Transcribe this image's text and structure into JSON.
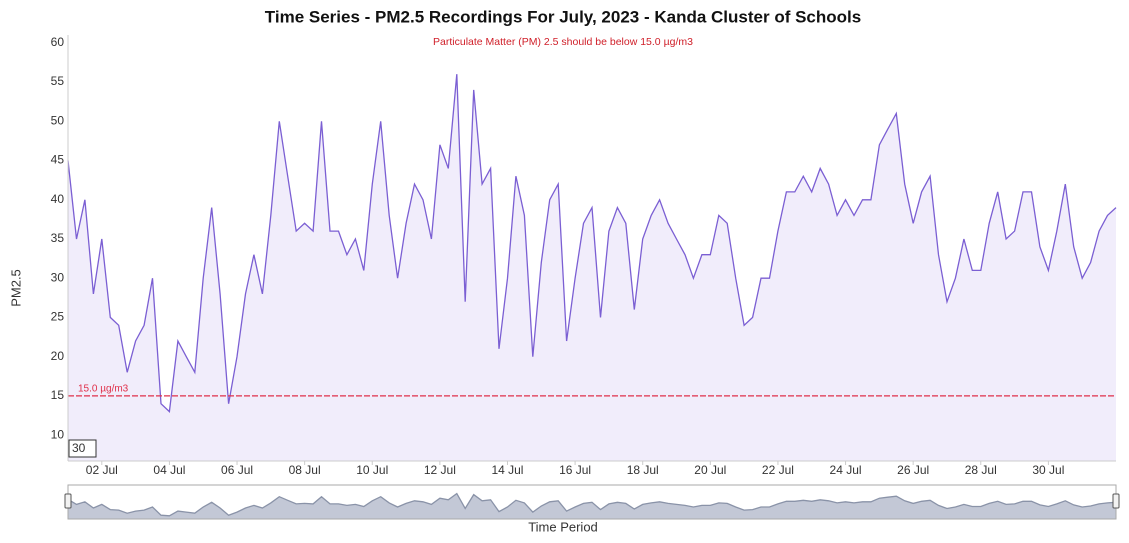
{
  "chart_data": {
    "type": "area",
    "title": "Time Series - PM2.5 Recordings For July, 2023 - Kanda Cluster of Schools",
    "subtitle": "Particulate Matter (PM) 2.5 should be below 15.0 µg/m3",
    "x_label": "Time Period",
    "y_label": "PM2.5",
    "range_input": "30",
    "threshold": {
      "value": 15,
      "label": "15.0 µg/m3",
      "color": "#e0304a"
    },
    "x": [
      1,
      1.25,
      1.5,
      1.75,
      2,
      2.25,
      2.5,
      2.75,
      3,
      3.25,
      3.5,
      3.75,
      4,
      4.25,
      4.5,
      4.75,
      5,
      5.25,
      5.5,
      5.75,
      6,
      6.25,
      6.5,
      6.75,
      7,
      7.25,
      7.5,
      7.75,
      8,
      8.25,
      8.5,
      8.75,
      9,
      9.25,
      9.5,
      9.75,
      10,
      10.25,
      10.5,
      10.75,
      11,
      11.25,
      11.5,
      11.75,
      12,
      12.25,
      12.5,
      12.75,
      13,
      13.25,
      13.5,
      13.75,
      14,
      14.25,
      14.5,
      14.75,
      15,
      15.25,
      15.5,
      15.75,
      16,
      16.25,
      16.5,
      16.75,
      17,
      17.25,
      17.5,
      17.75,
      18,
      18.25,
      18.5,
      18.75,
      19,
      19.25,
      19.5,
      19.75,
      20,
      20.25,
      20.5,
      20.75,
      21,
      21.25,
      21.5,
      21.75,
      22,
      22.25,
      22.5,
      22.75,
      23,
      23.25,
      23.5,
      23.75,
      24,
      24.25,
      24.5,
      24.75,
      25,
      25.25,
      25.5,
      25.75,
      26,
      26.25,
      26.5,
      26.75,
      27,
      27.25,
      27.5,
      27.75,
      28,
      28.25,
      28.5,
      28.75,
      29,
      29.25,
      29.5,
      29.75,
      30,
      30.25,
      30.5,
      30.75,
      31,
      31.25,
      31.5,
      31.75,
      32
    ],
    "series": [
      {
        "name": "PM2.5",
        "color": "#7b5fd3",
        "fill": "#f1edfb",
        "values": [
          45,
          35,
          40,
          28,
          35,
          25,
          24,
          18,
          22,
          24,
          30,
          14,
          13,
          22,
          20,
          18,
          30,
          39,
          28,
          14,
          20,
          28,
          33,
          28,
          38,
          50,
          43,
          36,
          37,
          36,
          50,
          36,
          36,
          33,
          35,
          31,
          42,
          50,
          38,
          30,
          37,
          42,
          40,
          35,
          47,
          44,
          56,
          27,
          54,
          42,
          44,
          21,
          30,
          43,
          38,
          20,
          32,
          40,
          42,
          22,
          30,
          37,
          39,
          25,
          36,
          39,
          37,
          26,
          35,
          38,
          40,
          37,
          35,
          33,
          30,
          33,
          33,
          38,
          37,
          30,
          24,
          25,
          30,
          30,
          36,
          41,
          41,
          43,
          41,
          44,
          42,
          38,
          40,
          38,
          40,
          40,
          47,
          49,
          51,
          42,
          37,
          41,
          43,
          33,
          27,
          30,
          35,
          31,
          31,
          37,
          41,
          35,
          36,
          41,
          41,
          34,
          31,
          36,
          42,
          34,
          30,
          32,
          36,
          38,
          39
        ]
      }
    ],
    "xlim": [
      1,
      32
    ],
    "xticks": [
      {
        "value": 2,
        "label": "02 Jul"
      },
      {
        "value": 4,
        "label": "04 Jul"
      },
      {
        "value": 6,
        "label": "06 Jul"
      },
      {
        "value": 8,
        "label": "08 Jul"
      },
      {
        "value": 10,
        "label": "10 Jul"
      },
      {
        "value": 12,
        "label": "12 Jul"
      },
      {
        "value": 14,
        "label": "14 Jul"
      },
      {
        "value": 16,
        "label": "16 Jul"
      },
      {
        "value": 18,
        "label": "18 Jul"
      },
      {
        "value": 20,
        "label": "20 Jul"
      },
      {
        "value": 22,
        "label": "22 Jul"
      },
      {
        "value": 24,
        "label": "24 Jul"
      },
      {
        "value": 26,
        "label": "26 Jul"
      },
      {
        "value": 28,
        "label": "28 Jul"
      },
      {
        "value": 30,
        "label": "30 Jul"
      }
    ],
    "ylim": [
      6.7,
      61
    ],
    "yticks": [
      10,
      15,
      20,
      25,
      30,
      35,
      40,
      45,
      50,
      55,
      60
    ],
    "grid": false
  }
}
